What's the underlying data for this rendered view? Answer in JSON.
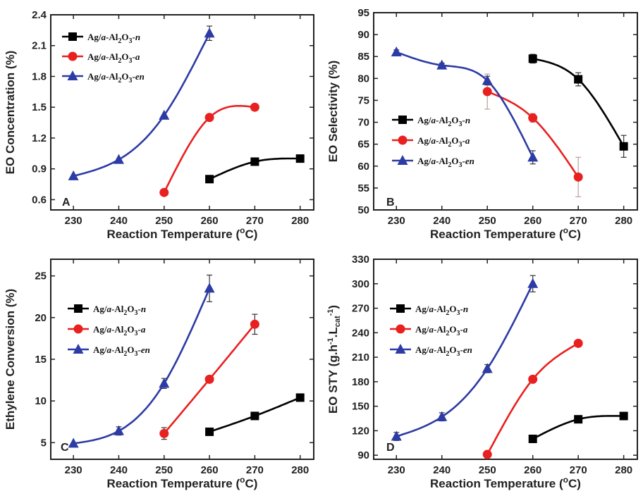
{
  "chart_data": [
    {
      "type": "line",
      "panel_label": "A",
      "xlabel": "Reaction Temperature (°C)",
      "ylabel": "EO Concentration (%)",
      "xlim": [
        225,
        283
      ],
      "ylim": [
        0.5,
        2.4
      ],
      "xticks": [
        "230",
        "240",
        "250",
        "260",
        "270",
        "280"
      ],
      "yticks": [
        "0.6",
        "0.9",
        "1.2",
        "1.5",
        "1.8",
        "2.1",
        "2.4"
      ],
      "legend_position": "top-left",
      "series": [
        {
          "name": "Ag/a-Al2O3-n",
          "marker": "square",
          "color": "#000000",
          "x": [
            260,
            270,
            280
          ],
          "y": [
            0.8,
            0.97,
            1.0
          ],
          "err": [
            0,
            0,
            0
          ]
        },
        {
          "name": "Ag/a-Al2O3-a",
          "marker": "circle",
          "color": "#e8201f",
          "x": [
            250,
            260,
            270
          ],
          "y": [
            0.67,
            1.4,
            1.5
          ],
          "err": [
            0,
            0,
            0
          ]
        },
        {
          "name": "Ag/a-Al2O3-en",
          "marker": "triangle",
          "color": "#2c3ba5",
          "x": [
            230,
            240,
            250,
            260
          ],
          "y": [
            0.83,
            0.99,
            1.42,
            2.22
          ],
          "err": [
            0,
            0,
            0,
            0.07
          ]
        }
      ]
    },
    {
      "type": "line",
      "panel_label": "B",
      "xlabel": "Reaction Temperature (°C)",
      "ylabel": "EO Selectivity (%)",
      "xlim": [
        225,
        283
      ],
      "ylim": [
        50,
        95
      ],
      "xticks": [
        "230",
        "240",
        "250",
        "260",
        "270",
        "280"
      ],
      "yticks": [
        "50",
        "55",
        "60",
        "65",
        "70",
        "75",
        "80",
        "85",
        "90",
        "95"
      ],
      "legend_position": "center-left",
      "series": [
        {
          "name": "Ag/a-Al2O3-n",
          "marker": "square",
          "color": "#000000",
          "x": [
            260,
            270,
            280
          ],
          "y": [
            84.5,
            79.8,
            64.5
          ],
          "err": [
            1.0,
            1.5,
            2.5
          ]
        },
        {
          "name": "Ag/a-Al2O3-a",
          "marker": "circle",
          "color": "#e8201f",
          "x": [
            250,
            260,
            270
          ],
          "y": [
            77.0,
            71.0,
            57.5
          ],
          "err": [
            4.0,
            1.0,
            4.5
          ]
        },
        {
          "name": "Ag/a-Al2O3-en",
          "marker": "triangle",
          "color": "#2c3ba5",
          "x": [
            230,
            240,
            250,
            260
          ],
          "y": [
            86.0,
            83.0,
            79.5,
            62.0
          ],
          "err": [
            0.5,
            0.5,
            1.0,
            1.5
          ]
        }
      ]
    },
    {
      "type": "line",
      "panel_label": "C",
      "xlabel": "Reaction Temperature (°C)",
      "ylabel": "Ethylene Conversion (%)",
      "xlim": [
        225,
        283
      ],
      "ylim": [
        3,
        27
      ],
      "xticks": [
        "230",
        "240",
        "250",
        "260",
        "270",
        "280"
      ],
      "yticks": [
        "5",
        "10",
        "15",
        "20",
        "25"
      ],
      "legend_position": "top-left",
      "series": [
        {
          "name": "Ag/a-Al2O3-n",
          "marker": "square",
          "color": "#000000",
          "x": [
            260,
            270,
            280
          ],
          "y": [
            6.3,
            8.2,
            10.4
          ],
          "err": [
            0,
            0,
            0
          ]
        },
        {
          "name": "Ag/a-Al2O3-a",
          "marker": "circle",
          "color": "#e8201f",
          "x": [
            250,
            260,
            270
          ],
          "y": [
            6.1,
            12.6,
            19.2
          ],
          "err": [
            0.7,
            0,
            1.2
          ]
        },
        {
          "name": "Ag/a-Al2O3-en",
          "marker": "triangle",
          "color": "#2c3ba5",
          "x": [
            230,
            240,
            250,
            260
          ],
          "y": [
            4.9,
            6.4,
            12.1,
            23.5
          ],
          "err": [
            0,
            0.5,
            0.6,
            1.6
          ]
        }
      ]
    },
    {
      "type": "line",
      "panel_label": "D",
      "xlabel": "Reaction Temperature (°C)",
      "ylabel": "EO STY (g.h⁻¹.L_cat⁻¹)",
      "xlim": [
        225,
        283
      ],
      "ylim": [
        85,
        330
      ],
      "xticks": [
        "230",
        "240",
        "250",
        "260",
        "270",
        "280"
      ],
      "yticks": [
        "90",
        "120",
        "150",
        "180",
        "210",
        "240",
        "270",
        "300",
        "330"
      ],
      "legend_position": "top-left",
      "series": [
        {
          "name": "Ag/a-Al2O3-n",
          "marker": "square",
          "color": "#000000",
          "x": [
            260,
            270,
            280
          ],
          "y": [
            110,
            134,
            138
          ],
          "err": [
            0,
            0,
            0
          ]
        },
        {
          "name": "Ag/a-Al2O3-a",
          "marker": "circle",
          "color": "#e8201f",
          "x": [
            250,
            260,
            270
          ],
          "y": [
            91,
            183,
            227
          ],
          "err": [
            0,
            0,
            0
          ]
        },
        {
          "name": "Ag/a-Al2O3-en",
          "marker": "triangle",
          "color": "#2c3ba5",
          "x": [
            230,
            240,
            250,
            260
          ],
          "y": [
            113,
            137,
            196,
            300
          ],
          "err": [
            5,
            5,
            5,
            10
          ]
        }
      ]
    }
  ]
}
